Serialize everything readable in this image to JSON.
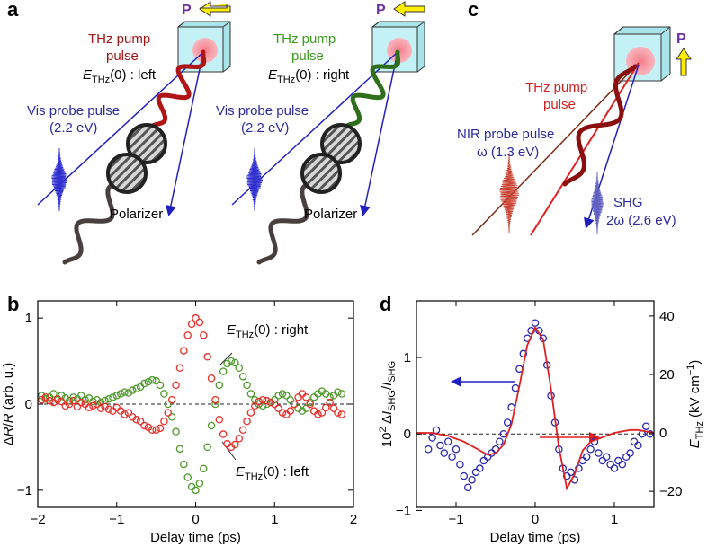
{
  "panel_labels": [
    "a",
    "b",
    "c",
    "d"
  ],
  "diagram_a_left": {
    "polarization": "P",
    "pump_lines": [
      "THz pump",
      "pulse"
    ],
    "field_label": [
      {
        "text": "E",
        "style": "italic"
      },
      {
        "text": "THz",
        "style": "sub"
      },
      {
        "text": "(0) : left"
      }
    ],
    "probe_lines": [
      "Vis probe pulse",
      "(2.2 eV)"
    ],
    "polarizer": "Polarizer"
  },
  "diagram_a_right": {
    "polarization": "P",
    "pump_lines": [
      "THz pump",
      "pulse"
    ],
    "field_label": [
      {
        "text": "E",
        "style": "italic"
      },
      {
        "text": "THz",
        "style": "sub"
      },
      {
        "text": "(0) : right"
      }
    ],
    "probe_lines": [
      "Vis probe pulse",
      "(2.2 eV)"
    ],
    "polarizer": "Polarizer"
  },
  "diagram_c": {
    "polarization": "P",
    "pump_lines": [
      "THz pump",
      "pulse"
    ],
    "probe_lines": [
      "NIR probe pulse",
      "ω (1.3 eV)"
    ],
    "shg_lines": [
      "SHG",
      "2ω (2.6 eV)"
    ]
  },
  "chart_data": [
    {
      "type": "scatter",
      "xlabel": [
        {
          "text": "Delay time (ps)"
        }
      ],
      "ylabel": [
        {
          "text": "Δ"
        },
        {
          "text": "R",
          "style": "italic"
        },
        {
          "text": "/"
        },
        {
          "text": "R",
          "style": "italic"
        },
        {
          "text": " (arb. u.)"
        }
      ],
      "xlim": [
        -2,
        2
      ],
      "ylim": [
        -1.2,
        1.2
      ],
      "xticks": [
        {
          "value": -2,
          "label": "−2"
        },
        {
          "value": -1,
          "label": "−1"
        },
        0,
        1,
        2
      ],
      "yticks": [
        {
          "value": -1,
          "label": "−1"
        },
        0,
        1
      ],
      "hline": 0,
      "x": [
        -1.95,
        -1.9,
        -1.85,
        -1.8,
        -1.75,
        -1.7,
        -1.65,
        -1.6,
        -1.55,
        -1.5,
        -1.45,
        -1.4,
        -1.35,
        -1.3,
        -1.25,
        -1.2,
        -1.15,
        -1.1,
        -1.05,
        -1.0,
        -0.95,
        -0.9,
        -0.85,
        -0.8,
        -0.75,
        -0.7,
        -0.65,
        -0.6,
        -0.55,
        -0.5,
        -0.45,
        -0.4,
        -0.35,
        -0.3,
        -0.25,
        -0.2,
        -0.15,
        -0.1,
        -0.05,
        0,
        0.05,
        0.1,
        0.15,
        0.2,
        0.25,
        0.3,
        0.35,
        0.4,
        0.45,
        0.5,
        0.55,
        0.6,
        0.65,
        0.7,
        0.75,
        0.8,
        0.85,
        0.9,
        0.95,
        1.0,
        1.05,
        1.1,
        1.15,
        1.2,
        1.25,
        1.3,
        1.35,
        1.4,
        1.45,
        1.5,
        1.55,
        1.6,
        1.65,
        1.7,
        1.75,
        1.8,
        1.85
      ],
      "series": [
        {
          "kind": "scatter",
          "color": "#4f9a2c",
          "annotation": [
            {
              "text": "E",
              "style": "italic"
            },
            {
              "text": "THz",
              "style": "sub"
            },
            {
              "text": "(0) : right"
            }
          ],
          "values": [
            0.1,
            0.06,
            0.08,
            0.12,
            0.05,
            0.1,
            0.07,
            0.04,
            0.08,
            0.06,
            0.1,
            0.05,
            0.07,
            0.03,
            0.05,
            0.02,
            0.04,
            0.06,
            0.08,
            0.1,
            0.12,
            0.14,
            0.13,
            0.16,
            0.18,
            0.2,
            0.24,
            0.26,
            0.28,
            0.27,
            0.22,
            0.12,
            0.0,
            -0.15,
            -0.32,
            -0.52,
            -0.7,
            -0.85,
            -0.96,
            -1.0,
            -0.92,
            -0.75,
            -0.5,
            -0.25,
            0.0,
            0.22,
            0.38,
            0.47,
            0.5,
            0.48,
            0.42,
            0.32,
            0.22,
            0.12,
            0.05,
            0.0,
            -0.02,
            0.0,
            0.02,
            0.05,
            0.1,
            0.12,
            0.1,
            0.05,
            0.0,
            -0.05,
            -0.08,
            -0.05,
            0.02,
            0.08,
            0.12,
            0.15,
            0.12,
            0.08,
            0.1,
            0.14,
            0.12
          ]
        },
        {
          "kind": "scatter",
          "color": "#e8302a",
          "annotation": [
            {
              "text": "E",
              "style": "italic"
            },
            {
              "text": "THz",
              "style": "sub"
            },
            {
              "text": "(0) : left"
            }
          ],
          "values": [
            0.05,
            0.08,
            0.04,
            0.02,
            0.06,
            0.03,
            -0.02,
            0.0,
            0.04,
            -0.03,
            0.02,
            0.0,
            -0.04,
            -0.02,
            0.0,
            -0.05,
            -0.03,
            -0.06,
            -0.08,
            -0.04,
            -0.08,
            -0.12,
            -0.1,
            -0.15,
            -0.18,
            -0.2,
            -0.25,
            -0.27,
            -0.3,
            -0.3,
            -0.28,
            -0.2,
            -0.1,
            0.05,
            0.22,
            0.42,
            0.62,
            0.8,
            0.93,
            1.0,
            0.95,
            0.8,
            0.55,
            0.3,
            0.05,
            -0.18,
            -0.35,
            -0.46,
            -0.5,
            -0.47,
            -0.4,
            -0.3,
            -0.2,
            -0.1,
            -0.02,
            0.03,
            0.05,
            0.04,
            0.02,
            0.0,
            -0.05,
            -0.1,
            -0.12,
            -0.08,
            0.0,
            0.08,
            0.12,
            0.08,
            0.0,
            -0.08,
            -0.12,
            -0.1,
            -0.04,
            0.02,
            -0.05,
            -0.1,
            -0.12
          ]
        }
      ]
    },
    {
      "type": "scatter_line",
      "xlabel": [
        {
          "text": "Delay time (ps)"
        }
      ],
      "ylabel": [
        {
          "text": "10"
        },
        {
          "text": "2",
          "style": "sup"
        },
        {
          "text": " Δ"
        },
        {
          "text": "I",
          "style": "italic"
        },
        {
          "text": "SHG",
          "style": "sub"
        },
        {
          "text": "/"
        },
        {
          "text": "I",
          "style": "italic"
        },
        {
          "text": "SHG",
          "style": "sub"
        }
      ],
      "y2label": [
        {
          "text": "E",
          "style": "italic"
        },
        {
          "text": "THz",
          "style": "sub"
        },
        {
          "text": " (kV cm"
        },
        {
          "text": "−1",
          "style": "sup"
        },
        {
          "text": ")"
        }
      ],
      "xlim": [
        -1.5,
        1.5
      ],
      "ylim": [
        -0.96,
        1.74
      ],
      "y2lim": [
        -25.5,
        45.2
      ],
      "xticks": [
        {
          "value": -1,
          "label": "−1"
        },
        0,
        1
      ],
      "yticks": [
        {
          "value": -1,
          "label": "−1"
        },
        0,
        1
      ],
      "y2ticks": [
        {
          "value": -20,
          "label": "−20"
        },
        0,
        20,
        40
      ],
      "hline": 0,
      "series": [
        {
          "kind": "scatter",
          "color": "#2a2ab0",
          "x": [
            -1.35,
            -1.3,
            -1.25,
            -1.2,
            -1.15,
            -1.1,
            -1.05,
            -1.0,
            -0.95,
            -0.9,
            -0.85,
            -0.8,
            -0.75,
            -0.7,
            -0.65,
            -0.6,
            -0.55,
            -0.5,
            -0.45,
            -0.4,
            -0.35,
            -0.3,
            -0.25,
            -0.2,
            -0.15,
            -0.1,
            -0.05,
            0,
            0.05,
            0.1,
            0.15,
            0.2,
            0.25,
            0.3,
            0.35,
            0.4,
            0.45,
            0.5,
            0.55,
            0.6,
            0.65,
            0.7,
            0.75,
            0.8,
            0.85,
            0.9,
            0.95,
            1.0,
            1.05,
            1.1,
            1.15,
            1.2,
            1.25,
            1.3,
            1.35,
            1.4,
            1.45
          ],
          "values": [
            -0.2,
            -0.05,
            0.05,
            -0.15,
            -0.25,
            -0.1,
            -0.3,
            -0.2,
            -0.4,
            -0.55,
            -0.7,
            -0.6,
            -0.5,
            -0.45,
            -0.35,
            -0.3,
            -0.25,
            -0.2,
            -0.1,
            0.0,
            0.15,
            0.35,
            0.6,
            0.85,
            1.05,
            1.25,
            1.35,
            1.45,
            1.35,
            1.25,
            0.9,
            0.5,
            0.15,
            -0.2,
            -0.45,
            -0.55,
            -0.5,
            -0.6,
            -0.45,
            -0.35,
            -0.3,
            -0.2,
            -0.1,
            -0.25,
            -0.35,
            -0.3,
            -0.4,
            -0.45,
            -0.35,
            -0.4,
            -0.3,
            -0.25,
            -0.1,
            -0.15,
            0.0,
            0.1,
            0.0
          ]
        },
        {
          "kind": "line",
          "axis": "y2",
          "color": "#e02020",
          "x": [
            -1.5,
            -1.4,
            -1.3,
            -1.2,
            -1.1,
            -1.0,
            -0.9,
            -0.8,
            -0.7,
            -0.6,
            -0.5,
            -0.4,
            -0.3,
            -0.2,
            -0.1,
            0,
            0.1,
            0.2,
            0.3,
            0.4,
            0.5,
            0.6,
            0.7,
            0.8,
            0.9,
            1.0,
            1.1,
            1.2,
            1.3,
            1.4,
            1.5
          ],
          "values": [
            0,
            0,
            0,
            -0.5,
            -1,
            -2,
            -3,
            -4.5,
            -6,
            -7.5,
            -7,
            -4,
            3,
            16,
            30,
            36,
            32,
            15,
            -5,
            -19,
            -14,
            -6,
            -3,
            -2,
            -1,
            0,
            0.5,
            1,
            1,
            0.5,
            0
          ]
        }
      ]
    }
  ]
}
